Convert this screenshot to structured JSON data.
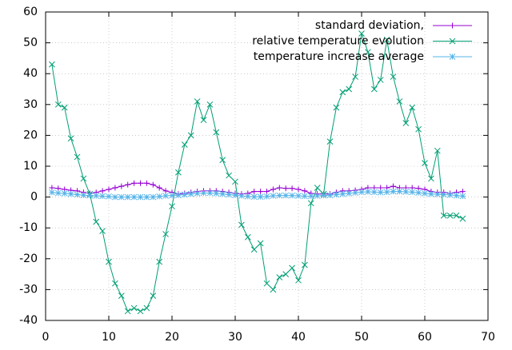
{
  "chart_data": {
    "type": "line",
    "x": [
      1,
      2,
      3,
      4,
      5,
      6,
      7,
      8,
      9,
      10,
      11,
      12,
      13,
      14,
      15,
      16,
      17,
      18,
      19,
      20,
      21,
      22,
      23,
      24,
      25,
      26,
      27,
      28,
      29,
      30,
      31,
      32,
      33,
      34,
      35,
      36,
      37,
      38,
      39,
      40,
      41,
      42,
      43,
      44,
      45,
      46,
      47,
      48,
      49,
      50,
      51,
      52,
      53,
      54,
      55,
      56,
      57,
      58,
      59,
      60,
      61,
      62,
      63,
      64,
      65,
      66
    ],
    "series": [
      {
        "name": "standard deviation,",
        "color": "#9400d3",
        "marker": "plus",
        "values": [
          3,
          2.8,
          2.5,
          2.2,
          2,
          1.5,
          1.2,
          1.5,
          2,
          2.5,
          3,
          3.5,
          4,
          4.5,
          4.5,
          4.5,
          4,
          3,
          2,
          1.5,
          1,
          1.2,
          1.5,
          1.8,
          2,
          2,
          2,
          1.8,
          1.5,
          1.2,
          1,
          1.2,
          1.8,
          1.8,
          1.8,
          2.5,
          3,
          2.8,
          2.8,
          2.5,
          2,
          1.2,
          1,
          1,
          1,
          1.5,
          2,
          2,
          2.2,
          2.5,
          3,
          3,
          3,
          3,
          3.5,
          3,
          3,
          3,
          2.8,
          2.5,
          1.8,
          1.5,
          1.5,
          1.2,
          1.5,
          1.8
        ]
      },
      {
        "name": "relative temperature evolution",
        "color": "#009e73",
        "marker": "cross",
        "values": [
          43,
          30,
          29,
          19,
          13,
          6,
          1,
          -8,
          -11,
          -21,
          -28,
          -32,
          -37,
          -36,
          -37,
          -36,
          -32,
          -21,
          -12,
          -3,
          8,
          17,
          20,
          31,
          25,
          30,
          21,
          12,
          7,
          5,
          -9,
          -13,
          -17,
          -15,
          -28,
          -30,
          -26,
          -25,
          -23,
          -27,
          -22,
          -2,
          3,
          1,
          18,
          29,
          34,
          35,
          39,
          53,
          47,
          35,
          38,
          51,
          39,
          31,
          24,
          29,
          22,
          11,
          6,
          15,
          -6,
          -6,
          -6,
          -7
        ]
      },
      {
        "name": "temperature increase average",
        "color": "#56b4e9",
        "marker": "star",
        "values": [
          1.5,
          1.3,
          1.2,
          1,
          0.8,
          0.6,
          0.5,
          0.4,
          0.3,
          0.2,
          0,
          0,
          0,
          0,
          0,
          0,
          0,
          0.2,
          0.4,
          0.5,
          0.6,
          0.8,
          1,
          1.2,
          1.3,
          1.3,
          1.2,
          1,
          0.8,
          0.6,
          0.4,
          0.2,
          0.1,
          0.1,
          0.2,
          0.4,
          0.5,
          0.5,
          0.5,
          0.4,
          0.3,
          0.3,
          0.4,
          0.5,
          0.6,
          0.8,
          1,
          1.2,
          1.4,
          1.6,
          1.7,
          1.6,
          1.5,
          1.6,
          1.8,
          1.8,
          1.7,
          1.6,
          1.4,
          1.2,
          1,
          0.9,
          0.8,
          0.7,
          0.5,
          0.3
        ]
      }
    ],
    "xlim": [
      0,
      70
    ],
    "xticks": [
      0,
      10,
      20,
      30,
      40,
      50,
      60,
      70
    ],
    "ylim": [
      -40,
      60
    ],
    "yticks": [
      -40,
      -30,
      -20,
      -10,
      0,
      10,
      20,
      30,
      40,
      50,
      60
    ],
    "grid": true,
    "legend": "top-right"
  }
}
